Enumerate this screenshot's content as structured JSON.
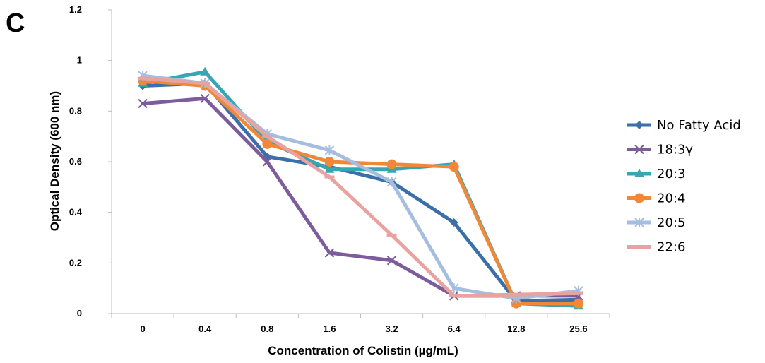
{
  "panel_label": "C",
  "chart_data": {
    "type": "line",
    "xlabel": "Concentration of Colistin (µg/mL)",
    "ylabel": "Optical Density (600 nm)",
    "categories": [
      "0",
      "0.4",
      "0.8",
      "1.6",
      "3.2",
      "6.4",
      "12.8",
      "25.6"
    ],
    "ylim": [
      0,
      1.2
    ],
    "yticks": [
      "0",
      "0.2",
      "0.4",
      "0.6",
      "0.8",
      "1",
      "1.2"
    ],
    "ytick_values": [
      0,
      0.2,
      0.4,
      0.6,
      0.8,
      1.0,
      1.2
    ],
    "grid": false,
    "legend_position": "right",
    "series": [
      {
        "name": "No Fatty Acid",
        "color": "#3a6fa8",
        "marker": "diamond",
        "values": [
          0.9,
          0.91,
          0.62,
          0.58,
          0.52,
          0.36,
          0.05,
          0.055
        ]
      },
      {
        "name": "18:3γ",
        "color": "#7d5c9c",
        "marker": "x",
        "values": [
          0.83,
          0.85,
          0.6,
          0.24,
          0.21,
          0.07,
          0.07,
          0.07
        ]
      },
      {
        "name": "20:3",
        "color": "#35a7b3",
        "marker": "triangle",
        "values": [
          0.91,
          0.955,
          0.68,
          0.57,
          0.57,
          0.59,
          0.04,
          0.03
        ]
      },
      {
        "name": "20:4",
        "color": "#f0883a",
        "marker": "circle",
        "values": [
          0.92,
          0.9,
          0.67,
          0.6,
          0.59,
          0.58,
          0.04,
          0.04
        ]
      },
      {
        "name": "20:5",
        "color": "#a5bddf",
        "marker": "star",
        "values": [
          0.94,
          0.91,
          0.71,
          0.645,
          0.52,
          0.1,
          0.06,
          0.09
        ]
      },
      {
        "name": "22:6",
        "color": "#e8a3a0",
        "marker": "dash",
        "values": [
          0.93,
          0.91,
          0.7,
          0.54,
          0.31,
          0.07,
          0.075,
          0.08
        ]
      }
    ]
  }
}
